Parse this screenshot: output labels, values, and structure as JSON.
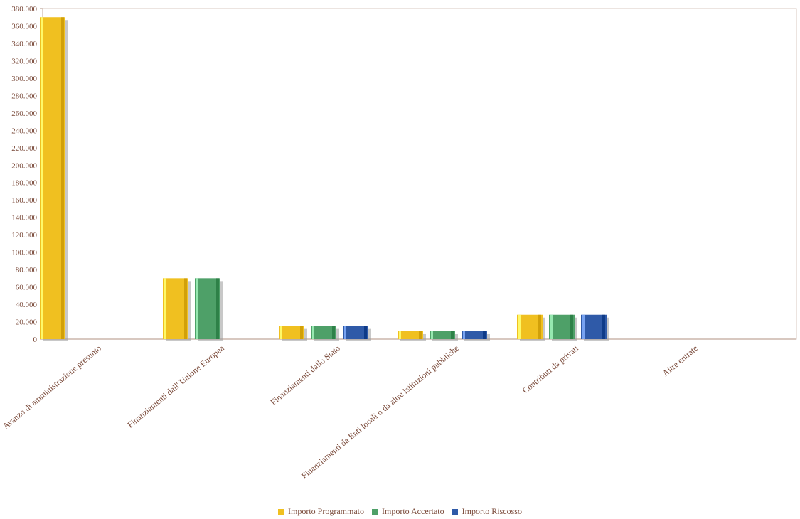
{
  "chart_data": {
    "type": "bar",
    "title": "",
    "xlabel": "",
    "ylabel": "",
    "ylim": [
      0,
      380000
    ],
    "yticks": [
      0,
      20000,
      40000,
      60000,
      80000,
      100000,
      120000,
      140000,
      160000,
      180000,
      200000,
      220000,
      240000,
      260000,
      280000,
      300000,
      320000,
      340000,
      360000,
      380000
    ],
    "ytick_labels": [
      "0",
      "20.000",
      "40.000",
      "60.000",
      "80.000",
      "100.000",
      "120.000",
      "140.000",
      "160.000",
      "180.000",
      "200.000",
      "220.000",
      "240.000",
      "260.000",
      "280.000",
      "300.000",
      "320.000",
      "340.000",
      "360.000",
      "380.000"
    ],
    "categories": [
      "Avanzo di amministrazione presunto",
      "Finanziamenti dall' Unione Europea",
      "Finanziamenti dallo Stato",
      "Finanziamenti da Enti locali o da altre istituzioni pubbliche",
      "Contributi da privati",
      "Altre entrate"
    ],
    "series": [
      {
        "name": "Importo Programmato",
        "color": "#f0c020",
        "values": [
          370000,
          70000,
          15000,
          9000,
          28000,
          0
        ]
      },
      {
        "name": "Importo Accertato",
        "color": "#4ea068",
        "values": [
          0,
          70000,
          15000,
          9000,
          28000,
          0
        ]
      },
      {
        "name": "Importo Riscosso",
        "color": "#2f5aa8",
        "values": [
          0,
          0,
          15000,
          9000,
          28000,
          0
        ]
      }
    ],
    "legend_position": "bottom",
    "grid": false
  }
}
